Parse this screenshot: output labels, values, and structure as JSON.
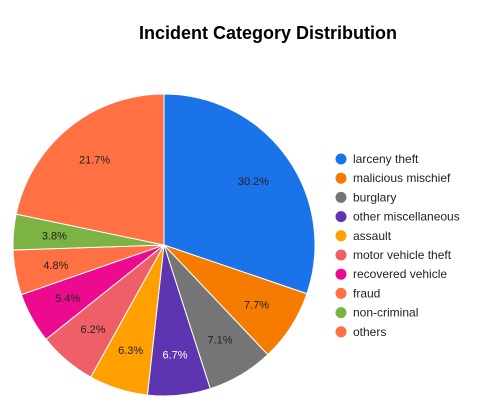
{
  "chart_data": {
    "type": "pie",
    "title": "Incident Category Distribution",
    "legend_position": "right",
    "slices": [
      {
        "name": "larceny theft",
        "value": 30.2,
        "label": "30.2%",
        "color": "#1a73e8",
        "label_color": "#222222"
      },
      {
        "name": "malicious mischief",
        "value": 7.7,
        "label": "7.7%",
        "color": "#f57c00",
        "label_color": "#222222"
      },
      {
        "name": "burglary",
        "value": 7.1,
        "label": "7.1%",
        "color": "#757575",
        "label_color": "#222222"
      },
      {
        "name": "other miscellaneous",
        "value": 6.7,
        "label": "6.7%",
        "color": "#5e35b1",
        "label_color": "#ffffff"
      },
      {
        "name": "assault",
        "value": 6.3,
        "label": "6.3%",
        "color": "#ffa000",
        "label_color": "#222222"
      },
      {
        "name": "motor vehicle theft",
        "value": 6.2,
        "label": "6.2%",
        "color": "#ef5f67",
        "label_color": "#222222"
      },
      {
        "name": "recovered vehicle",
        "value": 5.4,
        "label": "5.4%",
        "color": "#ec0b8e",
        "label_color": "#222222"
      },
      {
        "name": "fraud",
        "value": 4.8,
        "label": "4.8%",
        "color": "#ff7043",
        "label_color": "#222222"
      },
      {
        "name": "non-criminal",
        "value": 3.8,
        "label": "3.8%",
        "color": "#7cb342",
        "label_color": "#222222"
      },
      {
        "name": "others",
        "value": 21.7,
        "label": "21.7%",
        "color": "#ff7043",
        "label_color": "#222222"
      }
    ]
  }
}
